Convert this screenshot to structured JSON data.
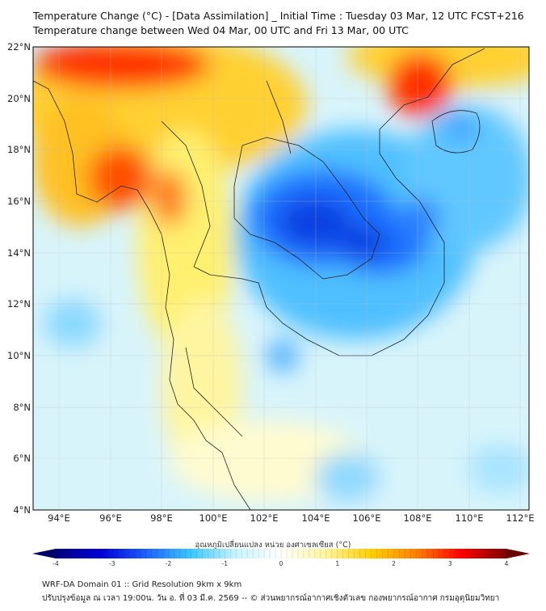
{
  "header": {
    "title": "Temperature Change (°C) - [Data Assimilation] _ Initial Time : Tuesday 03 Mar, 12 UTC FCST+216",
    "subtitle": "Temperature change between Wed 04 Mar, 00 UTC and Fri 13 Mar, 00 UTC"
  },
  "map": {
    "lat_labels": [
      "22°N",
      "20°N",
      "18°N",
      "16°N",
      "14°N",
      "12°N",
      "10°N",
      "8°N",
      "6°N",
      "4°N"
    ],
    "lon_labels": [
      "94°E",
      "96°E",
      "98°E",
      "100°E",
      "102°E",
      "104°E",
      "106°E",
      "108°E",
      "110°E",
      "112°E"
    ]
  },
  "colorbar": {
    "label": "อุณหภูมิเปลี่ยนแปลง หน่วย องศาเซลเซียส (°C)",
    "ticks": [
      "-4",
      "-3",
      "-2",
      "-1",
      "0",
      "1",
      "2",
      "3",
      "4"
    ],
    "min": -4,
    "max": 4,
    "colors": [
      "#000080",
      "#0000d8",
      "#1e60ff",
      "#3cc8ff",
      "#c8f4ff",
      "#ffffff",
      "#fff59a",
      "#ffd000",
      "#ff8000",
      "#ff0000",
      "#800000"
    ]
  },
  "footer": {
    "line1": "WRF-DA Domain 01 :: Grid Resolution 9km x 9km",
    "line2": "ปรับปรุงข้อมูล ณ เวลา 19:00น. วัน อ. ที่ 03 มี.ค. 2569 -- © ส่วนพยากรณ์อากาศเชิงตัวเลข กองพยากรณ์อากาศ กรมอุตุนิยมวิทยา"
  }
}
